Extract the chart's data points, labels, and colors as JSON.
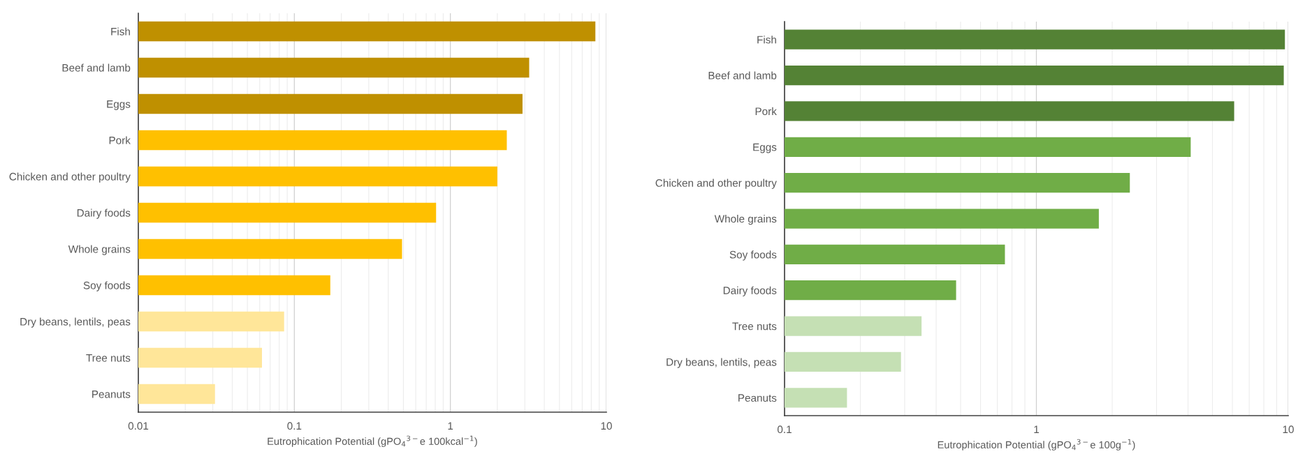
{
  "chart_data": [
    {
      "type": "bar",
      "orientation": "horizontal",
      "log": "x",
      "grid": "x",
      "xlabel": "Eutrophication Potential (gPO$_{4}$$^{3−}$e 100kcal$^{−1}$)",
      "categories": [
        "Fish",
        "Beef and lamb",
        "Eggs",
        "Pork",
        "Chicken and other poultry",
        "Dairy foods",
        "Whole grains",
        "Soy foods",
        "Dry beans, lentils, peas",
        "Tree nuts",
        "Peanuts"
      ],
      "values": [
        8.5,
        3.2,
        2.9,
        2.3,
        2.0,
        0.81,
        0.49,
        0.17,
        0.086,
        0.062,
        0.031
      ],
      "colors": [
        "#bf9000",
        "#bf9000",
        "#bf9000",
        "#ffc000",
        "#ffc000",
        "#ffc000",
        "#ffc000",
        "#ffc000",
        "#ffe699",
        "#ffe699",
        "#ffe699"
      ],
      "xlim": [
        0.01,
        10
      ],
      "xticks": [
        0.01,
        0.1,
        1,
        10
      ]
    },
    {
      "type": "bar",
      "orientation": "horizontal",
      "log": "x",
      "grid": "x",
      "xlabel": "Eutrophication Potential (gPO$_{4}$$^{3−}$e 100g$^{−1}$)",
      "categories": [
        "Fish",
        "Beef and lamb",
        "Pork",
        "Eggs",
        "Chicken and other poultry",
        "Whole grains",
        "Soy foods",
        "Dairy foods",
        "Tree nuts",
        "Dry beans, lentils, peas",
        "Peanuts"
      ],
      "values": [
        9.7,
        9.6,
        6.1,
        4.1,
        2.35,
        1.77,
        0.75,
        0.48,
        0.35,
        0.29,
        0.177
      ],
      "colors": [
        "#548235",
        "#548235",
        "#548235",
        "#70ad47",
        "#70ad47",
        "#70ad47",
        "#70ad47",
        "#70ad47",
        "#c5e0b4",
        "#c5e0b4",
        "#c5e0b4"
      ],
      "xlim": [
        0.1,
        10
      ],
      "xticks": [
        0.1,
        1,
        10
      ]
    }
  ]
}
